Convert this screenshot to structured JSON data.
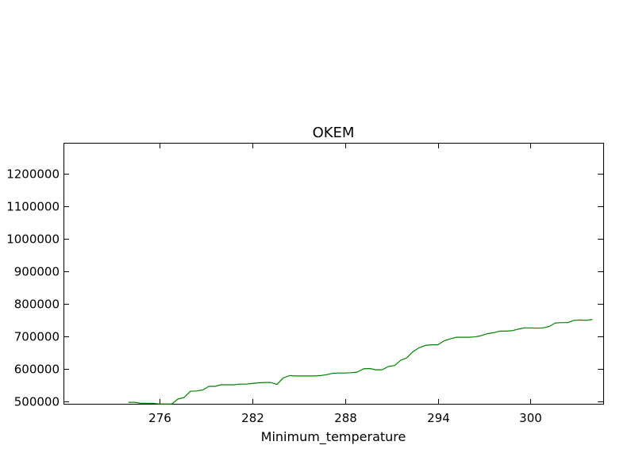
{
  "chart_data": {
    "type": "line",
    "title": "OKEM",
    "xlabel": "Minimum_temperature",
    "ylabel": "",
    "xlim": [
      269.8,
      304.7
    ],
    "ylim": [
      490000,
      1295000
    ],
    "xticks": [
      276,
      282,
      288,
      294,
      300
    ],
    "yticks": [
      500000,
      600000,
      700000,
      800000,
      900000,
      1000000,
      1100000,
      1200000
    ],
    "grid": false,
    "series": [
      {
        "color": "#008000",
        "x": [
          274.0,
          274.4,
          274.8,
          275.2,
          275.6,
          276.0,
          276.4,
          276.8,
          277.2,
          277.6,
          278.0,
          278.4,
          278.8,
          279.2,
          279.6,
          280.0,
          280.4,
          280.8,
          281.2,
          281.6,
          282.0,
          282.4,
          282.8,
          283.2,
          283.6,
          284.0,
          284.4,
          284.8,
          285.2,
          285.6,
          286.0,
          286.4,
          286.8,
          287.2,
          287.6,
          288.0,
          288.4,
          288.8,
          289.2,
          289.6,
          290.0,
          290.4,
          290.8,
          291.2,
          291.6,
          292.0,
          292.4,
          292.8,
          293.2,
          293.6,
          294.0,
          294.4,
          294.8,
          295.2,
          295.6,
          296.0,
          296.4,
          296.8,
          297.2,
          297.6,
          298.0,
          298.4,
          298.8,
          299.2,
          299.6,
          300.0,
          300.4,
          300.8,
          301.2,
          301.6,
          302.0,
          302.4,
          302.8,
          303.2,
          303.6,
          304.0
        ],
        "y": [
          497000,
          497000,
          494000,
          494000,
          494000,
          492000,
          492000,
          492000,
          507000,
          512000,
          531000,
          532000,
          535000,
          546000,
          546000,
          551000,
          551000,
          551000,
          553000,
          553000,
          555000,
          557000,
          558000,
          558000,
          552000,
          572000,
          579000,
          578000,
          578000,
          578000,
          578000,
          579000,
          582000,
          586000,
          587000,
          587000,
          588000,
          590000,
          600000,
          601000,
          597000,
          597000,
          607000,
          610000,
          626000,
          634000,
          653000,
          665000,
          672000,
          674000,
          674000,
          686000,
          692000,
          697000,
          697000,
          697000,
          698000,
          702000,
          708000,
          711000,
          716000,
          716000,
          717000,
          722000,
          726000,
          726000,
          725000,
          726000,
          730000,
          741000,
          742000,
          742000,
          749000,
          750000,
          749000,
          752000
        ]
      }
    ]
  }
}
